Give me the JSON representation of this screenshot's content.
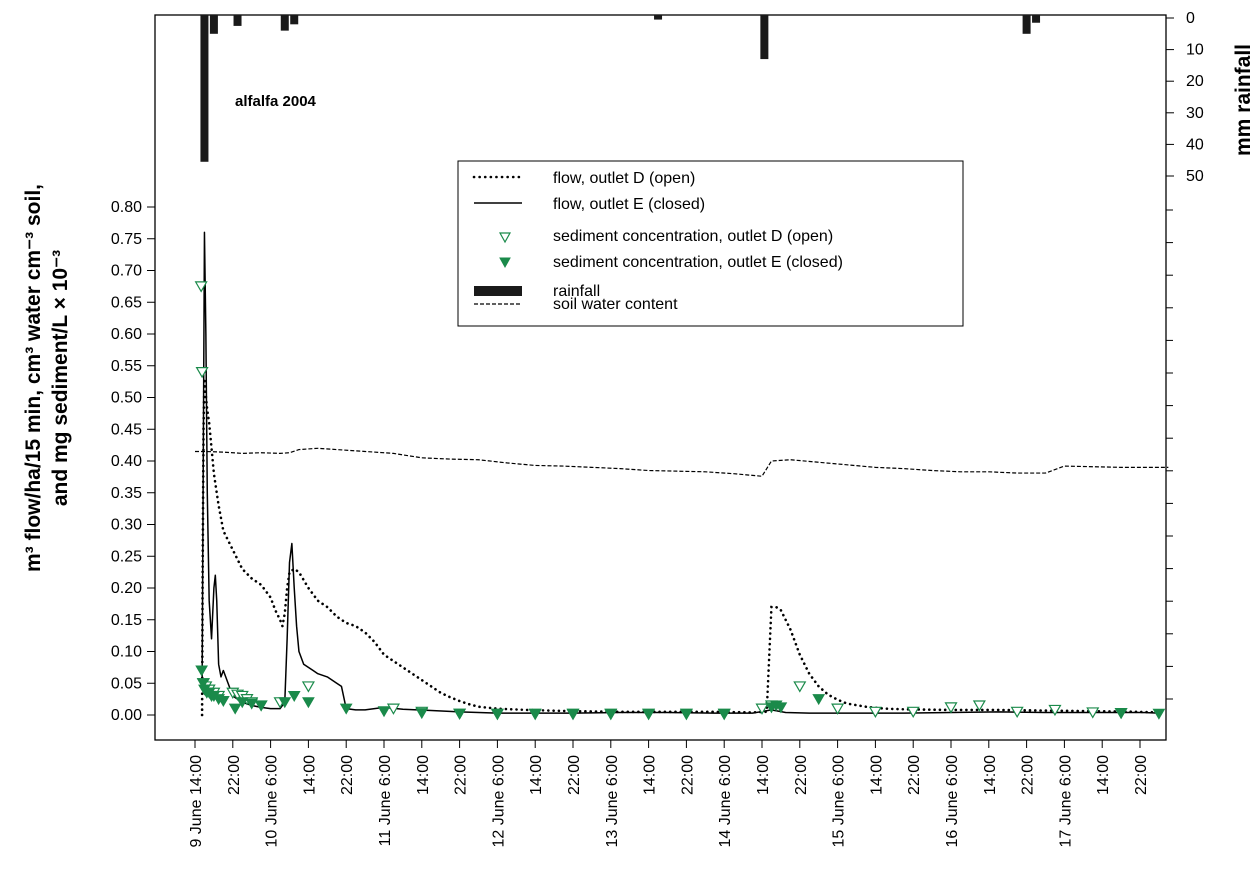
{
  "chart_data": {
    "type": "line",
    "annotation": "alfalfa 2004",
    "ylabel_line1": "m³ flow/ha/15 min, cm³ water cm⁻³ soil,",
    "ylabel_line2": "and mg sediment/L × 10⁻³",
    "y2label": "mm rainfall",
    "ylim": [
      0,
      0.8
    ],
    "yticks": [
      "0.00",
      "0.05",
      "0.10",
      "0.15",
      "0.20",
      "0.25",
      "0.30",
      "0.35",
      "0.40",
      "0.45",
      "0.50",
      "0.55",
      "0.60",
      "0.65",
      "0.70",
      "0.75",
      "0.80"
    ],
    "y2lim": [
      0,
      50
    ],
    "y2ticks": [
      "0",
      "10",
      "20",
      "30",
      "40",
      "50"
    ],
    "xlim": [
      -2,
      206
    ],
    "xticks": [
      {
        "h": 0,
        "label": "9 June 14:00"
      },
      {
        "h": 8,
        "label": "22:00"
      },
      {
        "h": 16,
        "label": "10 June 6:00"
      },
      {
        "h": 24,
        "label": "14:00"
      },
      {
        "h": 32,
        "label": "22:00"
      },
      {
        "h": 40,
        "label": "11 June 6:00"
      },
      {
        "h": 48,
        "label": "14:00"
      },
      {
        "h": 56,
        "label": "22:00"
      },
      {
        "h": 64,
        "label": "12 June 6:00"
      },
      {
        "h": 72,
        "label": "14:00"
      },
      {
        "h": 80,
        "label": "22:00"
      },
      {
        "h": 88,
        "label": "13 June 6:00"
      },
      {
        "h": 96,
        "label": "14:00"
      },
      {
        "h": 104,
        "label": "22:00"
      },
      {
        "h": 112,
        "label": "14 June 6:00"
      },
      {
        "h": 120,
        "label": "14:00"
      },
      {
        "h": 128,
        "label": "22:00"
      },
      {
        "h": 136,
        "label": "15 June 6:00"
      },
      {
        "h": 144,
        "label": "14:00"
      },
      {
        "h": 152,
        "label": "22:00"
      },
      {
        "h": 160,
        "label": "16 June 6:00"
      },
      {
        "h": 168,
        "label": "14:00"
      },
      {
        "h": 176,
        "label": "22:00"
      },
      {
        "h": 184,
        "label": "17 June 6:00"
      },
      {
        "h": 192,
        "label": "14:00"
      },
      {
        "h": 200,
        "label": "22:00"
      }
    ],
    "legend": [
      {
        "key": "flow_d",
        "label": "flow, outlet D (open)"
      },
      {
        "key": "flow_e",
        "label": "flow, outlet E (closed)"
      },
      {
        "key": "sed_d",
        "label": "sediment concentration, outlet D (open)"
      },
      {
        "key": "sed_e",
        "label": "sediment concentration, outlet E (closed)"
      },
      {
        "key": "rain",
        "label": "rainfall"
      },
      {
        "key": "swc",
        "label": "soil water content"
      }
    ],
    "colors": {
      "sediment": "#1a8a4a",
      "ink": "#000000"
    },
    "series": [
      {
        "name": "flow, outlet D (open)",
        "style": "dotted",
        "x": [
          1.5,
          1.6,
          1.8,
          2,
          2.2,
          2.6,
          3,
          3.5,
          4,
          5,
          6,
          8,
          10,
          12,
          14,
          15,
          16,
          17,
          18,
          18.5,
          19,
          19.5,
          20,
          21,
          22,
          24,
          26,
          28,
          30,
          32,
          34,
          36,
          38,
          40,
          42,
          44,
          46,
          48,
          50,
          52,
          54,
          56,
          58,
          60,
          64,
          70,
          80,
          90,
          100,
          110,
          118,
          121,
          122,
          123,
          124,
          125,
          126,
          127,
          128,
          130,
          132,
          134,
          136,
          138,
          142,
          146,
          150,
          160,
          170,
          180,
          190,
          200,
          204
        ],
        "y": [
          0.0,
          0.2,
          0.45,
          0.53,
          0.51,
          0.48,
          0.46,
          0.42,
          0.38,
          0.33,
          0.29,
          0.26,
          0.23,
          0.215,
          0.205,
          0.195,
          0.185,
          0.165,
          0.15,
          0.14,
          0.16,
          0.2,
          0.225,
          0.23,
          0.225,
          0.2,
          0.18,
          0.17,
          0.155,
          0.145,
          0.14,
          0.13,
          0.115,
          0.095,
          0.085,
          0.075,
          0.065,
          0.055,
          0.045,
          0.035,
          0.028,
          0.022,
          0.017,
          0.013,
          0.01,
          0.008,
          0.006,
          0.005,
          0.005,
          0.005,
          0.004,
          0.005,
          0.17,
          0.17,
          0.165,
          0.15,
          0.135,
          0.115,
          0.095,
          0.065,
          0.045,
          0.032,
          0.024,
          0.018,
          0.013,
          0.01,
          0.009,
          0.008,
          0.008,
          0.007,
          0.006,
          0.005,
          0.004
        ]
      },
      {
        "name": "flow, outlet E (closed)",
        "style": "solid",
        "x": [
          1.5,
          2,
          2.3,
          2.6,
          3,
          3.5,
          4,
          4.3,
          4.6,
          5,
          5.5,
          6,
          7,
          8,
          10,
          12,
          14,
          16,
          18,
          19,
          19.5,
          20,
          20.5,
          21,
          21.5,
          22,
          23,
          24,
          25,
          26,
          28,
          30,
          31,
          32,
          34,
          36,
          40,
          44,
          50,
          56,
          64,
          72,
          80,
          90,
          100,
          110,
          118,
          122,
          125,
          130,
          140,
          150,
          160,
          170,
          180,
          190,
          200,
          204
        ],
        "y": [
          0.04,
          0.76,
          0.6,
          0.35,
          0.18,
          0.12,
          0.2,
          0.22,
          0.18,
          0.08,
          0.06,
          0.07,
          0.05,
          0.03,
          0.02,
          0.015,
          0.012,
          0.01,
          0.01,
          0.02,
          0.12,
          0.24,
          0.27,
          0.2,
          0.14,
          0.1,
          0.08,
          0.075,
          0.07,
          0.065,
          0.06,
          0.05,
          0.045,
          0.01,
          0.008,
          0.008,
          0.012,
          0.009,
          0.007,
          0.005,
          0.003,
          0.003,
          0.003,
          0.004,
          0.004,
          0.003,
          0.003,
          0.008,
          0.004,
          0.003,
          0.003,
          0.003,
          0.004,
          0.005,
          0.004,
          0.004,
          0.004,
          0.003
        ]
      },
      {
        "name": "soil water content",
        "style": "dashed",
        "x": [
          0,
          2,
          6,
          10,
          14,
          18,
          20,
          22,
          26,
          30,
          36,
          42,
          48,
          54,
          60,
          66,
          72,
          78,
          84,
          90,
          96,
          102,
          108,
          114,
          120,
          122,
          126,
          132,
          138,
          144,
          150,
          156,
          162,
          168,
          174,
          180,
          184,
          190,
          196,
          202,
          206
        ],
        "y": [
          0.415,
          0.415,
          0.414,
          0.412,
          0.413,
          0.412,
          0.413,
          0.418,
          0.42,
          0.418,
          0.415,
          0.412,
          0.405,
          0.403,
          0.402,
          0.397,
          0.393,
          0.392,
          0.39,
          0.388,
          0.385,
          0.384,
          0.383,
          0.38,
          0.376,
          0.4,
          0.402,
          0.398,
          0.394,
          0.39,
          0.388,
          0.385,
          0.383,
          0.383,
          0.381,
          0.381,
          0.392,
          0.391,
          0.39,
          0.39,
          0.39
        ]
      },
      {
        "name": "sediment concentration, outlet D (open)",
        "marker": "open-triangle",
        "x": [
          1.3,
          1.5,
          1.8,
          2.3,
          3,
          4,
          5,
          8,
          9,
          10,
          11,
          12,
          14,
          18,
          24,
          42,
          48,
          56,
          64,
          72,
          80,
          88,
          96,
          104,
          112,
          120,
          122,
          128,
          136,
          144,
          152,
          160,
          166,
          174,
          182,
          190,
          196
        ],
        "y": [
          0.675,
          0.54,
          0.05,
          0.045,
          0.04,
          0.035,
          0.03,
          0.035,
          0.032,
          0.03,
          0.025,
          0.02,
          0.015,
          0.02,
          0.045,
          0.01,
          0.005,
          0.002,
          0.002,
          0.002,
          0.002,
          0.002,
          0.002,
          0.002,
          0.002,
          0.01,
          0.015,
          0.045,
          0.01,
          0.005,
          0.005,
          0.012,
          0.015,
          0.005,
          0.008,
          0.004,
          0.003
        ]
      },
      {
        "name": "sediment concentration, outlet E (closed)",
        "marker": "filled-triangle",
        "x": [
          1.4,
          1.7,
          2,
          2.5,
          3,
          3.5,
          4,
          5,
          6,
          8.5,
          10,
          12,
          14,
          19,
          21,
          24,
          32,
          40,
          48,
          56,
          64,
          72,
          80,
          88,
          96,
          104,
          112,
          122,
          123,
          124,
          132,
          196,
          204
        ],
        "y": [
          0.07,
          0.05,
          0.04,
          0.035,
          0.035,
          0.03,
          0.03,
          0.025,
          0.022,
          0.01,
          0.02,
          0.018,
          0.015,
          0.02,
          0.03,
          0.02,
          0.01,
          0.006,
          0.003,
          0.002,
          0.001,
          0.001,
          0.001,
          0.001,
          0.001,
          0.001,
          0.001,
          0.012,
          0.015,
          0.012,
          0.025,
          0.003,
          0.002
        ]
      },
      {
        "name": "rainfall",
        "style": "bars-from-top",
        "x": [
          2,
          4,
          9,
          19,
          21,
          98,
          120.5,
          176,
          178
        ],
        "y": [
          45.5,
          5,
          2.5,
          4,
          2,
          0.5,
          13,
          5,
          1.5
        ]
      }
    ]
  }
}
